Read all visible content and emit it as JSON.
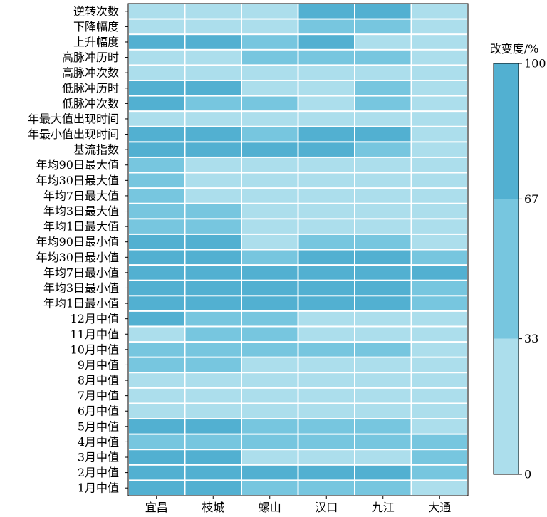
{
  "chart_data": {
    "type": "heatmap",
    "columns": [
      "宜昌",
      "枝城",
      "螺山",
      "汉口",
      "九江",
      "大通"
    ],
    "rows": [
      "逆转次数",
      "下降幅度",
      "上升幅度",
      "高脉冲历时",
      "高脉冲次数",
      "低脉冲历时",
      "低脉冲次数",
      "年最大值出现时间",
      "年最小值出现时间",
      "基流指数",
      "年均90日最大值",
      "年均30日最大值",
      "年均7日最大值",
      "年均3日最大值",
      "年均1日最大值",
      "年均90日最小值",
      "年均30日最小值",
      "年均7日最小值",
      "年均3日最小值",
      "年均1日最小值",
      "12月中值",
      "11月中值",
      "10月中值",
      "9月中值",
      "8月中值",
      "7月中值",
      "6月中值",
      "5月中值",
      "4月中值",
      "3月中值",
      "2月中值",
      "1月中值"
    ],
    "categories": [
      "low",
      "mid",
      "high"
    ],
    "values": [
      [
        "low",
        "low",
        "low",
        "high",
        "high",
        "low"
      ],
      [
        "low",
        "low",
        "low",
        "mid",
        "mid",
        "low"
      ],
      [
        "high",
        "high",
        "mid",
        "high",
        "low",
        "low"
      ],
      [
        "low",
        "low",
        "mid",
        "mid",
        "mid",
        "low"
      ],
      [
        "low",
        "low",
        "low",
        "low",
        "low",
        "low"
      ],
      [
        "high",
        "high",
        "low",
        "low",
        "mid",
        "low"
      ],
      [
        "high",
        "mid",
        "mid",
        "low",
        "mid",
        "low"
      ],
      [
        "low",
        "low",
        "low",
        "low",
        "low",
        "low"
      ],
      [
        "high",
        "high",
        "mid",
        "high",
        "high",
        "low"
      ],
      [
        "high",
        "high",
        "high",
        "high",
        "mid",
        "low"
      ],
      [
        "mid",
        "low",
        "low",
        "low",
        "low",
        "low"
      ],
      [
        "mid",
        "low",
        "low",
        "low",
        "low",
        "low"
      ],
      [
        "mid",
        "low",
        "low",
        "low",
        "low",
        "low"
      ],
      [
        "mid",
        "mid",
        "low",
        "low",
        "low",
        "low"
      ],
      [
        "mid",
        "mid",
        "low",
        "low",
        "low",
        "low"
      ],
      [
        "high",
        "high",
        "low",
        "mid",
        "mid",
        "low"
      ],
      [
        "high",
        "high",
        "mid",
        "high",
        "high",
        "mid"
      ],
      [
        "high",
        "high",
        "high",
        "high",
        "high",
        "high"
      ],
      [
        "high",
        "high",
        "high",
        "high",
        "high",
        "mid"
      ],
      [
        "high",
        "high",
        "high",
        "high",
        "high",
        "mid"
      ],
      [
        "high",
        "mid",
        "mid",
        "low",
        "low",
        "low"
      ],
      [
        "low",
        "mid",
        "mid",
        "low",
        "low",
        "low"
      ],
      [
        "mid",
        "mid",
        "mid",
        "mid",
        "mid",
        "low"
      ],
      [
        "mid",
        "mid",
        "low",
        "low",
        "low",
        "low"
      ],
      [
        "low",
        "low",
        "low",
        "low",
        "low",
        "low"
      ],
      [
        "low",
        "low",
        "low",
        "low",
        "low",
        "low"
      ],
      [
        "low",
        "low",
        "low",
        "low",
        "low",
        "low"
      ],
      [
        "high",
        "high",
        "mid",
        "mid",
        "mid",
        "low"
      ],
      [
        "mid",
        "mid",
        "mid",
        "mid",
        "mid",
        "mid"
      ],
      [
        "high",
        "high",
        "low",
        "low",
        "low",
        "mid"
      ],
      [
        "high",
        "high",
        "high",
        "high",
        "high",
        "mid"
      ],
      [
        "high",
        "high",
        "mid",
        "mid",
        "mid",
        "low"
      ]
    ],
    "colors": {
      "low": "#acdeec",
      "mid": "#77c6df",
      "high": "#52b0d1"
    },
    "colorbar": {
      "title": "改变度/%",
      "ticks": [
        "0",
        "33",
        "67",
        "100"
      ],
      "bands": [
        {
          "from": 0,
          "to": 33,
          "level": "low"
        },
        {
          "from": 33,
          "to": 67,
          "level": "mid"
        },
        {
          "from": 67,
          "to": 100,
          "level": "high"
        }
      ]
    }
  }
}
